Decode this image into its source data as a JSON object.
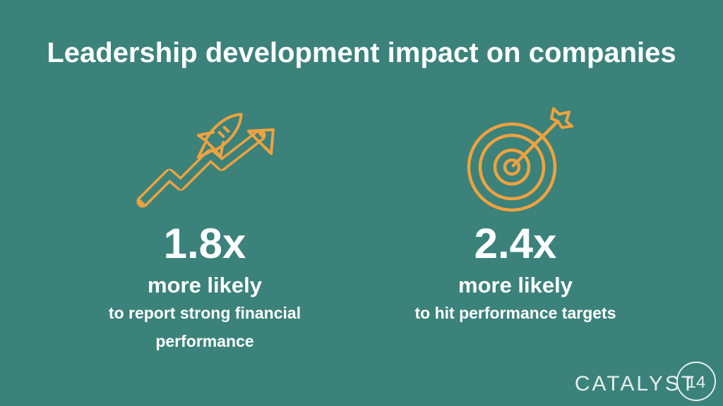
{
  "header": {
    "title": "Leadership development impact on companies"
  },
  "stats": [
    {
      "figure": "1.8x",
      "headline": "more likely",
      "description_lines": [
        "to report strong financial",
        "performance"
      ]
    },
    {
      "figure": "2.4x",
      "headline": "more likely",
      "description_lines": [
        "to hit performance targets"
      ]
    }
  ],
  "logo": {
    "name": "CATALYST",
    "number": "14"
  }
}
